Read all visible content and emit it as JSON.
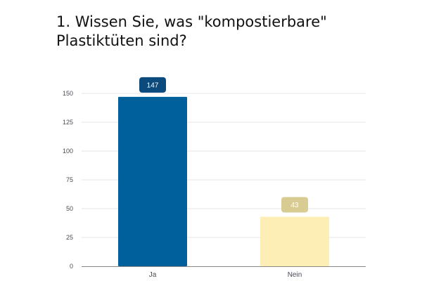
{
  "chart_data": {
    "type": "bar",
    "title": "1. Wissen Sie, was \"kompostierbare\" Plastiktüten sind?",
    "categories": [
      "Ja",
      "Nein"
    ],
    "values": [
      147,
      43
    ],
    "data_labels": [
      "147",
      "43"
    ],
    "yticks": [
      0,
      25,
      50,
      75,
      100,
      125,
      150
    ],
    "ylim": [
      0,
      150
    ],
    "xlabel": "",
    "ylabel": "",
    "grid": true,
    "colors": {
      "bars": [
        "#00609c",
        "#fdeeb5"
      ],
      "labels": [
        "#0b4a7d",
        "#d9cc92"
      ],
      "grid": "#e6e6ea",
      "axis": "#888888"
    }
  }
}
